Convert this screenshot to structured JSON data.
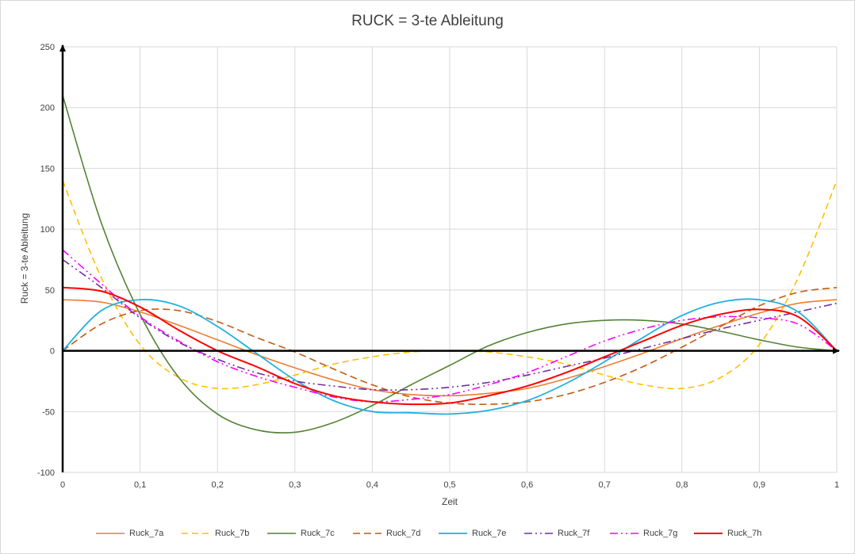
{
  "chart_data": {
    "type": "line",
    "title": "RUCK = 3-te Ableitung",
    "xlabel": "Zeit",
    "ylabel": "Ruck = 3-te Ableitung",
    "xlim": [
      0,
      1
    ],
    "ylim": [
      -100,
      250
    ],
    "x_ticks": [
      0,
      0.1,
      0.2,
      0.3,
      0.4,
      0.5,
      0.6,
      0.7,
      0.8,
      0.9,
      1
    ],
    "x_tick_labels": [
      "0",
      "0,1",
      "0,2",
      "0,3",
      "0,4",
      "0,5",
      "0,6",
      "0,7",
      "0,8",
      "0,9",
      "1"
    ],
    "y_ticks": [
      -100,
      -50,
      0,
      50,
      100,
      150,
      200,
      250
    ],
    "y_tick_labels": [
      "-100",
      "-50",
      "0",
      "50",
      "100",
      "150",
      "200",
      "250"
    ],
    "grid": true,
    "legend_position": "bottom",
    "x": [
      0,
      0.05,
      0.1,
      0.15,
      0.2,
      0.25,
      0.3,
      0.35,
      0.4,
      0.45,
      0.5,
      0.55,
      0.6,
      0.65,
      0.7,
      0.75,
      0.8,
      0.85,
      0.9,
      0.95,
      1
    ],
    "series": [
      {
        "name": "Ruck_7a",
        "color": "#ed7d31",
        "dash": "solid",
        "width": 1.6,
        "values": [
          42,
          40,
          32,
          21,
          9,
          -3,
          -14,
          -24,
          -32,
          -36,
          -37,
          -35,
          -31,
          -23,
          -13,
          -2,
          10,
          21,
          31,
          39,
          42
        ]
      },
      {
        "name": "Ruck_7b",
        "color": "#ffc000",
        "dash": "8,5",
        "width": 1.6,
        "values": [
          140,
          60,
          5,
          -22,
          -31,
          -28,
          -20,
          -11,
          -5,
          -1,
          0,
          -1,
          -5,
          -11,
          -20,
          -28,
          -31,
          -22,
          5,
          60,
          140
        ]
      },
      {
        "name": "Ruck_7c",
        "color": "#548235",
        "dash": "solid",
        "width": 1.6,
        "values": [
          210,
          105,
          30,
          -22,
          -52,
          -65,
          -67,
          -59,
          -45,
          -28,
          -12,
          4,
          15,
          22,
          25,
          25,
          22,
          16,
          9,
          3,
          0
        ]
      },
      {
        "name": "Ruck_7d",
        "color": "#c55a11",
        "dash": "9,5",
        "width": 1.6,
        "values": [
          0,
          22,
          33,
          33,
          24,
          11,
          -1,
          -15,
          -28,
          -38,
          -43,
          -44,
          -42,
          -36,
          -26,
          -13,
          3,
          20,
          37,
          48,
          52
        ]
      },
      {
        "name": "Ruck_7e",
        "color": "#1fb1e0",
        "dash": "solid",
        "width": 1.8,
        "values": [
          0,
          33,
          42,
          37,
          20,
          -2,
          -24,
          -41,
          -50,
          -51,
          -52,
          -49,
          -41,
          -27,
          -9,
          11,
          29,
          40,
          42,
          32,
          0
        ]
      },
      {
        "name": "Ruck_7f",
        "color": "#7030a0",
        "dash": "10,4,2,4,2,4",
        "width": 1.6,
        "values": [
          75,
          52,
          27,
          7,
          -7,
          -18,
          -25,
          -29,
          -32,
          -32,
          -30,
          -26,
          -20,
          -13,
          -6,
          2,
          10,
          18,
          25,
          32,
          39
        ]
      },
      {
        "name": "Ruck_7g",
        "color": "#ff00ff",
        "dash": "10,4,2,4,2,4",
        "width": 1.6,
        "values": [
          83,
          55,
          28,
          8,
          -9,
          -21,
          -30,
          -38,
          -42,
          -40,
          -36,
          -28,
          -18,
          -5,
          8,
          18,
          25,
          28,
          27,
          22,
          0
        ]
      },
      {
        "name": "Ruck_7h",
        "color": "#ff0000",
        "dash": "solid",
        "width": 2,
        "values": [
          52,
          49,
          36,
          17,
          0,
          -13,
          -27,
          -37,
          -42,
          -44,
          -43,
          -37,
          -29,
          -18,
          -5,
          8,
          21,
          30,
          34,
          28,
          0
        ]
      }
    ]
  }
}
